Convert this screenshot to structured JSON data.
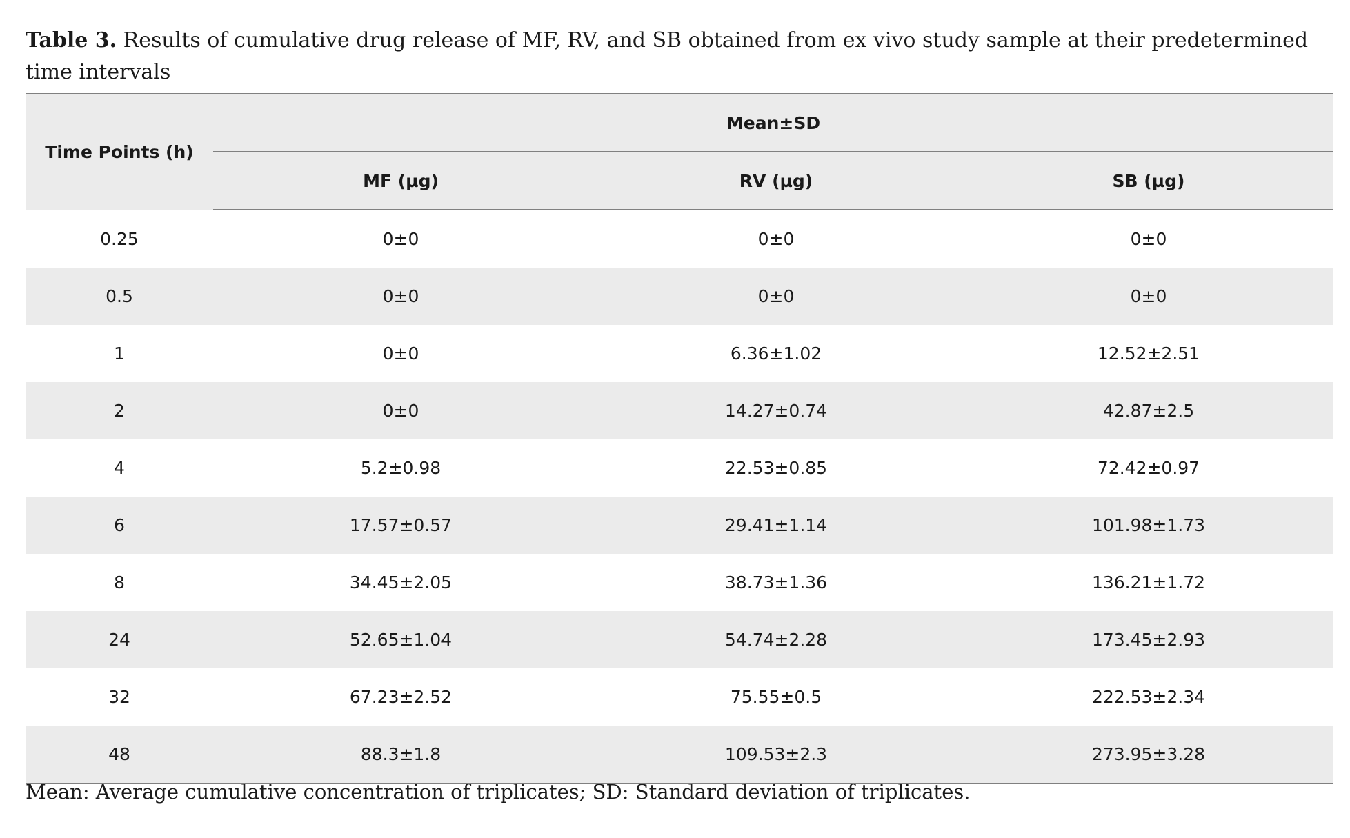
{
  "caption": {
    "label": "Table 3.",
    "text": " Results of cumulative drug release of MF, RV, and SB obtained from ex vivo study sample at their predetermined time intervals"
  },
  "table": {
    "header": {
      "time_col": "Time Points (h)",
      "group": "Mean±SD",
      "cols": [
        "MF (µg)",
        "RV (µg)",
        "SB (µg)"
      ]
    },
    "rows": [
      [
        "0.25",
        "0±0",
        "0±0",
        "0±0"
      ],
      [
        "0.5",
        "0±0",
        "0±0",
        "0±0"
      ],
      [
        "1",
        "0±0",
        "6.36±1.02",
        "12.52±2.51"
      ],
      [
        "2",
        "0±0",
        "14.27±0.74",
        "42.87±2.5"
      ],
      [
        "4",
        "5.2±0.98",
        "22.53±0.85",
        "72.42±0.97"
      ],
      [
        "6",
        "17.57±0.57",
        "29.41±1.14",
        "101.98±1.73"
      ],
      [
        "8",
        "34.45±2.05",
        "38.73±1.36",
        "136.21±1.72"
      ],
      [
        "24",
        "52.65±1.04",
        "54.74±2.28",
        "173.45±2.93"
      ],
      [
        "32",
        "67.23±2.52",
        "75.55±0.5",
        "222.53±2.34"
      ],
      [
        "48",
        "88.3±1.8",
        "109.53±2.3",
        "273.95±3.28"
      ]
    ]
  },
  "footnote": "Mean: Average cumulative concentration of triplicates; SD: Standard deviation of triplicates."
}
